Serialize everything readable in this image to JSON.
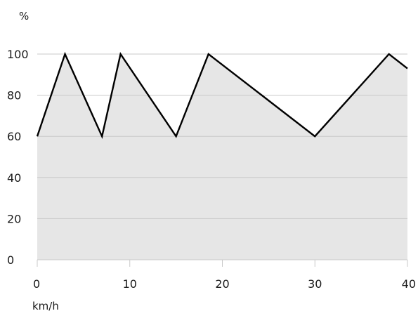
{
  "chart_data": {
    "type": "area",
    "ylabel": "%",
    "xlabel": "km/h",
    "xlim": [
      0,
      40
    ],
    "ylim": [
      0,
      100
    ],
    "x_ticks": [
      0,
      10,
      20,
      30,
      40
    ],
    "y_ticks": [
      0,
      20,
      40,
      60,
      80,
      100
    ],
    "grid": true,
    "series": [
      {
        "x": [
          0,
          3,
          7,
          9,
          15,
          18.5,
          30,
          38,
          40
        ],
        "y": [
          60,
          100,
          60,
          100,
          60,
          100,
          60,
          100,
          93
        ]
      }
    ],
    "colors": {
      "line": "#000000",
      "fill": "#e6e6e6",
      "grid": "#c8c8c8",
      "text": "#1a1a1a"
    }
  }
}
